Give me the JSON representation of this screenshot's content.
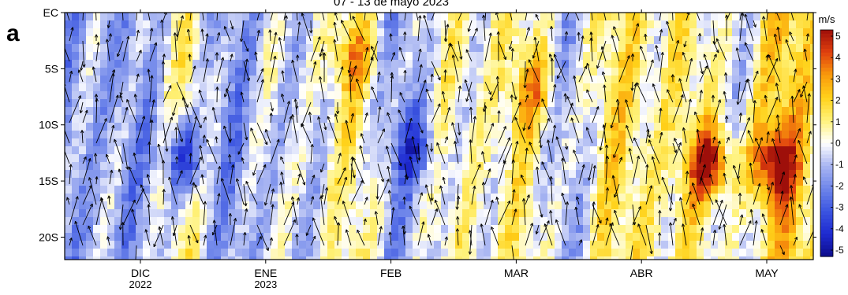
{
  "panel_label": "a",
  "chart_data": {
    "type": "heatmap",
    "title": "07 - 13 de mayo 2023",
    "xlabel": "",
    "ylabel": "",
    "y_ticks": [
      "EC",
      "5S",
      "10S",
      "15S",
      "20S"
    ],
    "y_tick_values": [
      0,
      -5,
      -10,
      -15,
      -20
    ],
    "ylim": [
      -22,
      0
    ],
    "x_ticks": [
      {
        "month": "DIC",
        "year": "2022"
      },
      {
        "month": "ENE",
        "year": "2023"
      },
      {
        "month": "FEB",
        "year": ""
      },
      {
        "month": "MAR",
        "year": ""
      },
      {
        "month": "ABR",
        "year": ""
      },
      {
        "month": "MAY",
        "year": ""
      }
    ],
    "colorbar": {
      "unit": "m/s",
      "ticks": [
        "5",
        "4",
        "3",
        "2",
        "1",
        "0",
        "-1",
        "-2",
        "-3",
        "-4",
        "-5"
      ],
      "range": [
        -5,
        5
      ],
      "colors": [
        "#0d0d8c",
        "#1e2ad1",
        "#3b55e0",
        "#6f86ea",
        "#a9b6f2",
        "#ffffff",
        "#fff27a",
        "#ffd21a",
        "#f99a0c",
        "#e0400e",
        "#9e0f0a"
      ]
    },
    "description_fields": {
      "variable": "velocity anomaly",
      "arrows": "velocity vectors"
    },
    "hotspots": [
      {
        "date_index": 4.55,
        "lat": -13.5,
        "value": 4.5
      },
      {
        "date_index": 5.05,
        "lat": -13.5,
        "value": 4.0
      },
      {
        "date_index": 1.7,
        "lat": -4.0,
        "value": 2.0
      },
      {
        "date_index": 3.15,
        "lat": -7.0,
        "value": 2.0
      },
      {
        "date_index": 0.35,
        "lat": -13.0,
        "value": -3.5
      },
      {
        "date_index": 2.2,
        "lat": -12.0,
        "value": -2.5
      }
    ]
  }
}
